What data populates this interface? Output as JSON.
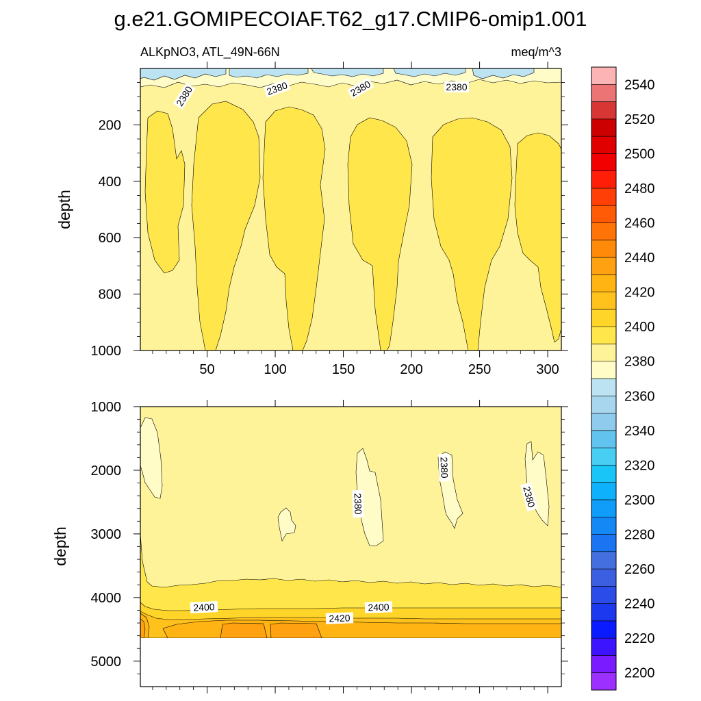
{
  "title": "g.e21.GOMIPECOIAF.T62_g17.CMIP6-omip1.001",
  "chart_data": {
    "type": "heatmap",
    "variable": "ALKpNO3, ATL_49N-66N",
    "units": "meq/m^3",
    "x_ticks": [
      50,
      100,
      150,
      200,
      250,
      300
    ],
    "xlim": [
      1,
      310
    ],
    "colorbar": {
      "levels": [
        2200,
        2210,
        2220,
        2230,
        2240,
        2250,
        2260,
        2270,
        2280,
        2290,
        2300,
        2310,
        2320,
        2330,
        2340,
        2350,
        2360,
        2370,
        2380,
        2390,
        2400,
        2410,
        2420,
        2430,
        2440,
        2450,
        2460,
        2470,
        2480,
        2490,
        2500,
        2510,
        2520,
        2530,
        2540,
        2550
      ],
      "tick_labels": [
        "2200",
        "2220",
        "2240",
        "2260",
        "2280",
        "2300",
        "2320",
        "2340",
        "2360",
        "2380",
        "2400",
        "2420",
        "2440",
        "2460",
        "2480",
        "2500",
        "2520",
        "2540"
      ],
      "colors": [
        "#9b30ff",
        "#7a1aff",
        "#3c14ff",
        "#0a1cff",
        "#1d39f0",
        "#2b4ce8",
        "#3b5fe0",
        "#4470df",
        "#1b74f2",
        "#1489f5",
        "#109dfa",
        "#0eb2fc",
        "#19c4f7",
        "#48cdf3",
        "#62c3ee",
        "#8fcbed",
        "#a7d6ee",
        "#bce3f1",
        "#fffcc8",
        "#fff39a",
        "#ffe64a",
        "#ffd52a",
        "#ffc11c",
        "#ffb414",
        "#ffa110",
        "#ff8a0a",
        "#ff7307",
        "#ff5a05",
        "#ff3f06",
        "#ff1f08",
        "#f20000",
        "#e00000",
        "#cc0000",
        "#d83535",
        "#ec7474",
        "#fcb4b4"
      ]
    },
    "panels": [
      {
        "ylabel": "depth",
        "ylim": [
          0,
          1000
        ],
        "y_ticks": [
          200,
          400,
          600,
          800,
          1000
        ],
        "contour_labels": [
          "2380",
          "2380",
          "2380",
          "2380"
        ],
        "cores_x": [
          [
            8,
            38
          ],
          [
            55,
            90
          ],
          [
            120,
            152
          ],
          [
            183,
            212
          ],
          [
            246,
            272
          ],
          [
            284,
            310
          ]
        ]
      },
      {
        "ylabel": "depth",
        "ylim": [
          1000,
          5400
        ],
        "y_ticks": [
          1000,
          2000,
          3000,
          4000,
          5000
        ],
        "bottom_depth": 4600,
        "contour_labels": [
          "2400",
          "2420",
          "2400",
          "2380",
          "2380",
          "2380"
        ]
      }
    ]
  }
}
